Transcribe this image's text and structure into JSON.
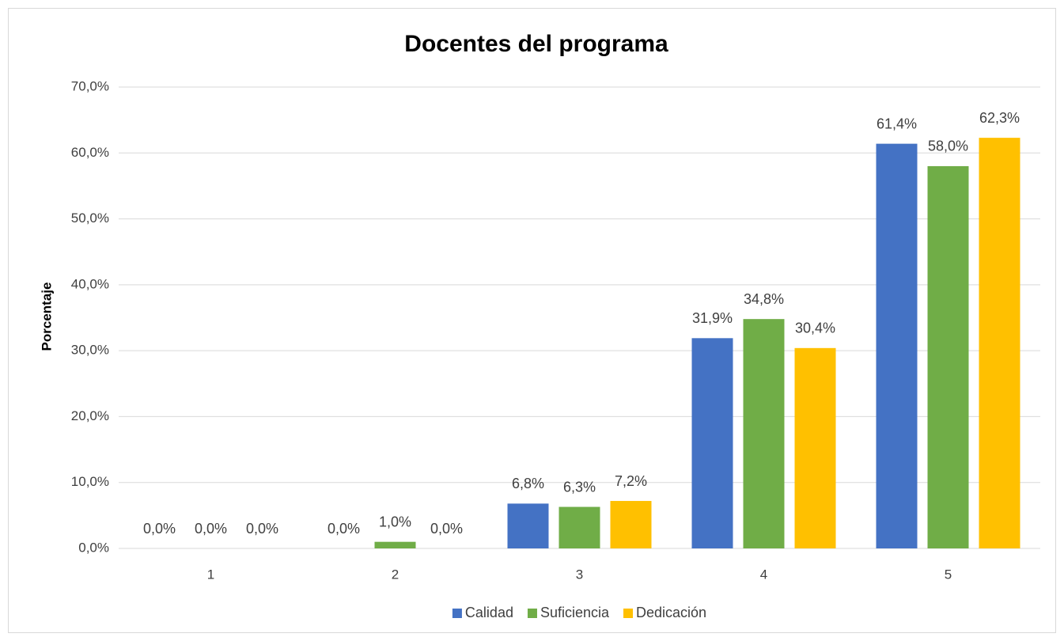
{
  "chart_data": {
    "type": "bar",
    "title": "Docentes del programa",
    "y_label": "Porcentaje",
    "categories": [
      "1",
      "2",
      "3",
      "4",
      "5"
    ],
    "series": [
      {
        "name": "Calidad",
        "color": "#4472c4",
        "values": [
          0,
          0,
          6.8,
          31.9,
          61.4
        ],
        "value_labels": [
          "0,0%",
          "0,0%",
          "6,8%",
          "31,9%",
          "61,4%"
        ]
      },
      {
        "name": "Suficiencia",
        "color": "#70ad47",
        "values": [
          0,
          1,
          6.3,
          34.8,
          58
        ],
        "value_labels": [
          "0,0%",
          "1,0%",
          "6,3%",
          "34,8%",
          "58,0%"
        ]
      },
      {
        "name": "Dedicación",
        "color": "#ffc000",
        "values": [
          0,
          0,
          7.2,
          30.4,
          62.3
        ],
        "value_labels": [
          "0,0%",
          "0,0%",
          "7,2%",
          "30,4%",
          "62,3%"
        ]
      }
    ],
    "ylim": [
      0,
      70
    ],
    "yticks": [
      {
        "value": 0,
        "label": "0,0%"
      },
      {
        "value": 10,
        "label": "10,0%"
      },
      {
        "value": 20,
        "label": "20,0%"
      },
      {
        "value": 30,
        "label": "30,0%"
      },
      {
        "value": 40,
        "label": "40,0%"
      },
      {
        "value": 50,
        "label": "50,0%"
      },
      {
        "value": 60,
        "label": "60,0%"
      },
      {
        "value": 70,
        "label": "70,0%"
      }
    ],
    "grid": true,
    "legend": "bottom"
  }
}
